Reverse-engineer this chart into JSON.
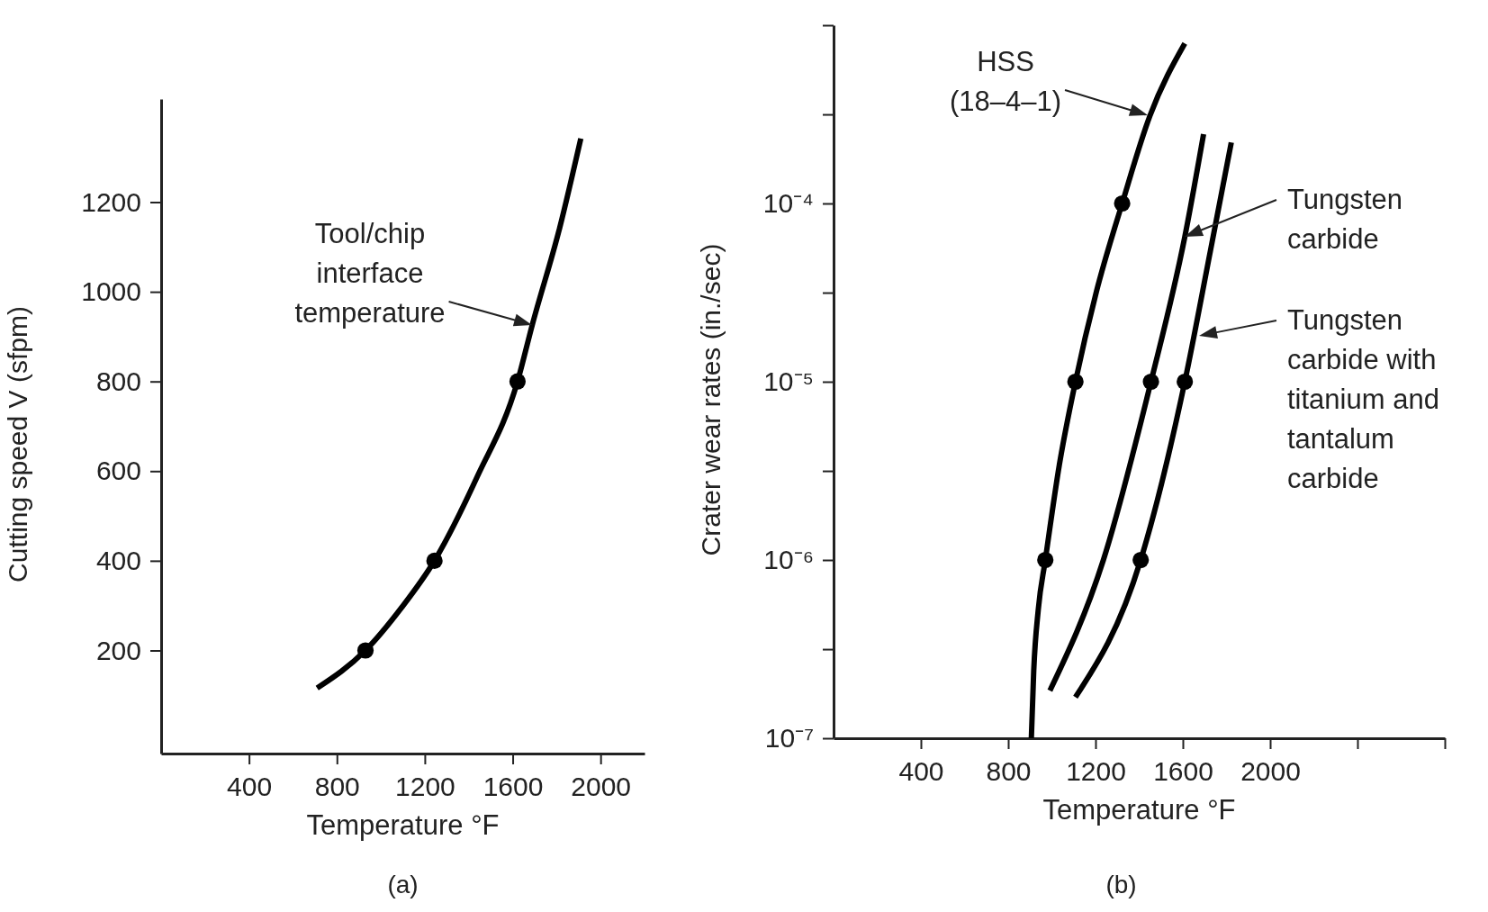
{
  "chart_data": [
    {
      "type": "line",
      "xlabel": "Temperature °F",
      "ylabel": "Cutting speed V (sfpm)",
      "xlim": [
        0,
        2200
      ],
      "ylim": [
        -30,
        1430
      ],
      "xticks": [
        400,
        800,
        1200,
        1600,
        2000
      ],
      "yticks": [
        200,
        400,
        600,
        800,
        1000,
        1200
      ],
      "marker": "none",
      "line_style": "solid",
      "series": [
        {
          "color": "#000000",
          "x": [
            710,
            930,
            1095,
            1244,
            1439,
            1622,
            1689,
            1814,
            1910
          ],
          "values": [
            116,
            200,
            296,
            400,
            588,
            800,
            926,
            1143,
            1342
          ]
        },
        {
          "type": "scatter",
          "marker": "circle",
          "color": "#000000",
          "x": [
            930,
            1244,
            1622
          ],
          "values": [
            200,
            400,
            800
          ]
        }
      ],
      "annotations": [
        "Tool/chip\ninterface\ntemperature",
        "(a)"
      ]
    },
    {
      "type": "line",
      "xlabel": "Temperature °F",
      "ylabel": "Crater wear rates (in./sec)",
      "log": "y",
      "xlim": [
        0,
        2800
      ],
      "ylim": [
        1e-07,
        0.001
      ],
      "xticks": [
        400,
        800,
        1200,
        1600,
        2000,
        {
          "value": 2400,
          "label": null
        },
        {
          "value": 2800,
          "label": null
        }
      ],
      "yticks": [
        {
          "value": 1e-07,
          "label": "10⁻⁷"
        },
        {
          "value": 3.16e-07,
          "label": null
        },
        {
          "value": 1e-06,
          "label": "10⁻⁶"
        },
        {
          "value": 3.16e-06,
          "label": null
        },
        {
          "value": 1e-05,
          "label": "10⁻⁵"
        },
        {
          "value": 3.16e-05,
          "label": null
        },
        {
          "value": 0.0001,
          "label": "10⁻⁴"
        },
        {
          "value": 0.000316,
          "label": null
        },
        {
          "value": 0.001,
          "label": null
        }
      ],
      "marker": "none",
      "line_style": "solid",
      "series": [
        {
          "color": "#000000",
          "x": [
            906,
            917,
            938,
            970,
            1034,
            1108,
            1204,
            1322,
            1449,
            1609
          ],
          "values": [
            1e-07,
            2.4e-07,
            5.3e-07,
            1e-06,
            3.4e-06,
            1e-05,
            3.2e-05,
            0.0001,
            0.00031,
            0.00079
          ]
        },
        {
          "color": "#000000",
          "x": [
            991,
            1236,
            1454,
            1609,
            1695
          ],
          "values": [
            1.85e-07,
            1e-06,
            1e-05,
            6.5e-05,
            0.000245
          ]
        },
        {
          "color": "#000000",
          "x": [
            1108,
            1407,
            1609,
            1726,
            1822
          ],
          "values": [
            1.7e-07,
            1e-06,
            1e-05,
            5.4e-05,
            0.00022
          ]
        },
        {
          "type": "scatter",
          "marker": "circle",
          "color": "#000000",
          "x": [
            970,
            1108,
            1322,
            1454,
            1407,
            1609
          ],
          "values": [
            1e-06,
            1e-05,
            0.0001,
            1e-05,
            1e-06,
            1e-05
          ]
        }
      ],
      "annotations": [
        "HSS\n(18–4–1)",
        "Tungsten\ncarbide",
        "Tungsten\ncarbide with\ntitanium and\ntantalum\ncarbide",
        "(b)"
      ]
    }
  ]
}
